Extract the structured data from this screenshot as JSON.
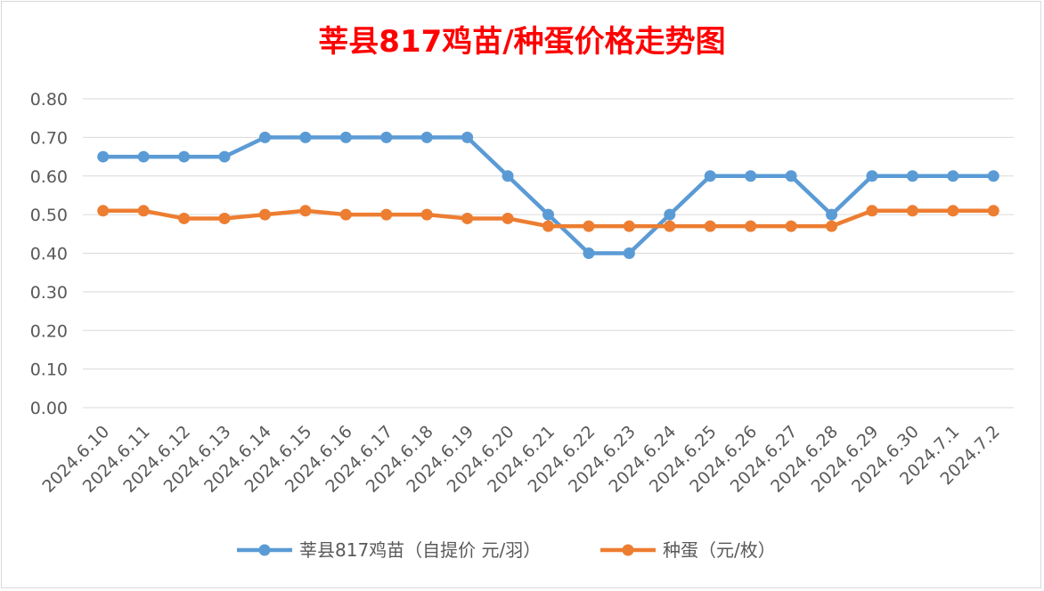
{
  "chart_data": {
    "type": "line",
    "title": "莘县817鸡苗/种蛋价格走势图",
    "title_color": "#ff0000",
    "categories": [
      "2024.6.10",
      "2024.6.11",
      "2024.6.12",
      "2024.6.13",
      "2024.6.14",
      "2024.6.15",
      "2024.6.16",
      "2024.6.17",
      "2024.6.18",
      "2024.6.19",
      "2024.6.20",
      "2024.6.21",
      "2024.6.22",
      "2024.6.23",
      "2024.6.24",
      "2024.6.25",
      "2024.6.26",
      "2024.6.27",
      "2024.6.28",
      "2024.6.29",
      "2024.6.30",
      "2024.7.1",
      "2024.7.2"
    ],
    "series": [
      {
        "name": "莘县817鸡苗（自提价 元/羽）",
        "color": "#5b9bd5",
        "values": [
          0.65,
          0.65,
          0.65,
          0.65,
          0.7,
          0.7,
          0.7,
          0.7,
          0.7,
          0.7,
          0.6,
          0.5,
          0.4,
          0.4,
          0.5,
          0.6,
          0.6,
          0.6,
          0.5,
          0.6,
          0.6,
          0.6,
          0.6
        ]
      },
      {
        "name": "种蛋（元/枚）",
        "color": "#ed7d31",
        "values": [
          0.51,
          0.51,
          0.49,
          0.49,
          0.5,
          0.51,
          0.5,
          0.5,
          0.5,
          0.49,
          0.49,
          0.47,
          0.47,
          0.47,
          0.47,
          0.47,
          0.47,
          0.47,
          0.47,
          0.51,
          0.51,
          0.51,
          0.51
        ]
      }
    ],
    "ylim": [
      0,
      0.8
    ],
    "yticks": [
      "0.00",
      "0.10",
      "0.20",
      "0.30",
      "0.40",
      "0.50",
      "0.60",
      "0.70",
      "0.80"
    ],
    "grid": true,
    "legend": "bottom"
  }
}
